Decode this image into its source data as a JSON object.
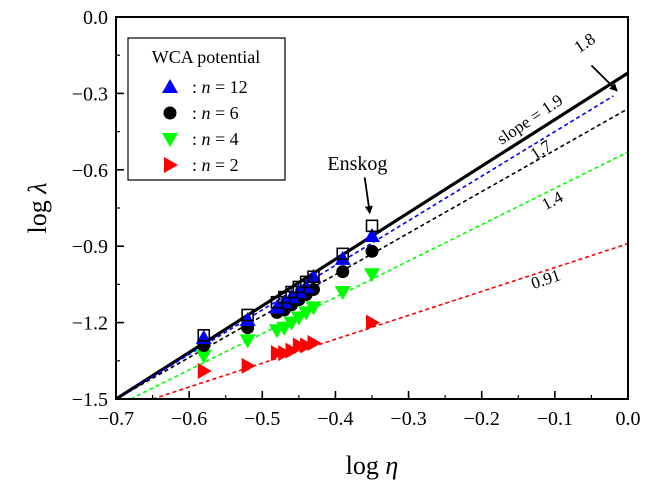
{
  "chart_data": {
    "type": "scatter",
    "title": "",
    "xlabel": "log η",
    "ylabel": "log λ",
    "xlim": [
      -0.7,
      0.0
    ],
    "ylim": [
      -1.5,
      0.0
    ],
    "grid": false,
    "legend_position": "top-left",
    "x_ticks": [
      -0.7,
      -0.6,
      -0.5,
      -0.4,
      -0.3,
      -0.2,
      -0.1,
      0.0
    ],
    "x_tick_labels": [
      "−0.7",
      "−0.6",
      "−0.5",
      "−0.4",
      "−0.3",
      "−0.2",
      "−0.1",
      "0.0"
    ],
    "y_ticks": [
      -1.5,
      -1.2,
      -0.9,
      -0.6,
      -0.3,
      0.0
    ],
    "y_tick_labels": [
      "−1.5",
      "−1.2",
      "−0.9",
      "−0.6",
      "−0.3",
      "0.0"
    ],
    "legend": {
      "title": "WCA potential",
      "entries": [
        {
          "prefix": ": ",
          "var": "n",
          "suffix": " = 12",
          "series": "n12"
        },
        {
          "prefix": ": ",
          "var": "n",
          "suffix": " = 6",
          "series": "n6"
        },
        {
          "prefix": ": ",
          "var": "n",
          "suffix": " = 4",
          "series": "n4"
        },
        {
          "prefix": ": ",
          "var": "n",
          "suffix": " = 2",
          "series": "n2"
        }
      ]
    },
    "series": [
      {
        "id": "enskog",
        "name": "Enskog",
        "marker": "open-square",
        "color": "#000000",
        "x": [
          -0.58,
          -0.52,
          -0.48,
          -0.47,
          -0.46,
          -0.45,
          -0.44,
          -0.43,
          -0.39,
          -0.35
        ],
        "y": [
          -1.25,
          -1.17,
          -1.12,
          -1.1,
          -1.08,
          -1.06,
          -1.04,
          -1.02,
          -0.93,
          -0.82
        ]
      },
      {
        "id": "n12",
        "name": "n = 12",
        "marker": "triangle-up",
        "color": "#0000ff",
        "x": [
          -0.58,
          -0.52,
          -0.48,
          -0.47,
          -0.46,
          -0.45,
          -0.44,
          -0.43,
          -0.39,
          -0.35
        ],
        "y": [
          -1.26,
          -1.19,
          -1.14,
          -1.12,
          -1.1,
          -1.08,
          -1.06,
          -1.02,
          -0.95,
          -0.86
        ]
      },
      {
        "id": "n6",
        "name": "n = 6",
        "marker": "circle",
        "color": "#000000",
        "x": [
          -0.58,
          -0.52,
          -0.48,
          -0.47,
          -0.46,
          -0.45,
          -0.44,
          -0.43,
          -0.39,
          -0.35
        ],
        "y": [
          -1.29,
          -1.22,
          -1.16,
          -1.15,
          -1.13,
          -1.11,
          -1.09,
          -1.07,
          -1.0,
          -0.92
        ]
      },
      {
        "id": "n4",
        "name": "n = 4",
        "marker": "triangle-down",
        "color": "#00ff00",
        "x": [
          -0.58,
          -0.52,
          -0.48,
          -0.47,
          -0.46,
          -0.45,
          -0.44,
          -0.43,
          -0.39,
          -0.35
        ],
        "y": [
          -1.33,
          -1.27,
          -1.23,
          -1.22,
          -1.2,
          -1.18,
          -1.16,
          -1.14,
          -1.08,
          -1.01
        ]
      },
      {
        "id": "n2",
        "name": "n = 2",
        "marker": "triangle-right",
        "color": "#ff0000",
        "x": [
          -0.58,
          -0.52,
          -0.48,
          -0.47,
          -0.46,
          -0.45,
          -0.44,
          -0.43,
          -0.35
        ],
        "y": [
          -1.39,
          -1.37,
          -1.32,
          -1.32,
          -1.31,
          -1.29,
          -1.29,
          -1.28,
          -1.2
        ]
      }
    ],
    "fit_lines": [
      {
        "id": "fit-enskog",
        "series": "enskog",
        "slope": 1.9,
        "x": [
          -0.7,
          0.0
        ],
        "y": [
          -1.5,
          -0.22
        ],
        "color": "#000000",
        "style": "solid"
      },
      {
        "id": "fit-n12",
        "series": "n12",
        "slope": 1.8,
        "x": [
          -0.7,
          -0.02
        ],
        "y": [
          -1.5,
          -0.31
        ],
        "color": "#0000ff",
        "style": "dashed"
      },
      {
        "id": "fit-n6",
        "series": "n6",
        "slope": 1.7,
        "x": [
          -0.7,
          0.0
        ],
        "y": [
          -1.5,
          -0.36
        ],
        "color": "#000000",
        "style": "dashed"
      },
      {
        "id": "fit-n4",
        "series": "n4",
        "slope": 1.4,
        "x": [
          -0.68,
          0.0
        ],
        "y": [
          -1.5,
          -0.53
        ],
        "color": "#00ff00",
        "style": "dashed"
      },
      {
        "id": "fit-n2",
        "series": "n2",
        "slope": 0.91,
        "x": [
          -0.65,
          0.0
        ],
        "y": [
          -1.5,
          -0.89
        ],
        "color": "#ff0000",
        "style": "dashed"
      }
    ],
    "annotations": [
      {
        "id": "slope-main",
        "text": "slope = 1.9",
        "x": -0.13,
        "y": -0.42,
        "angle": -34,
        "fs": 17
      },
      {
        "id": "slope-12",
        "text": "1.8",
        "x": -0.055,
        "y": -0.12,
        "angle": -34,
        "fs": 17
      },
      {
        "id": "slope-6",
        "text": "1.7",
        "x": -0.115,
        "y": -0.54,
        "angle": -33,
        "fs": 17
      },
      {
        "id": "slope-4",
        "text": "1.4",
        "x": -0.1,
        "y": -0.74,
        "angle": -28,
        "fs": 17
      },
      {
        "id": "slope-2",
        "text": "0.91",
        "x": -0.11,
        "y": -1.05,
        "angle": -19,
        "fs": 17
      },
      {
        "id": "enskog-label",
        "text": "Enskog",
        "x": -0.37,
        "y": -0.6,
        "angle": 0,
        "fs": 20
      }
    ],
    "arrows": [
      {
        "id": "enskog-arrow",
        "from": [
          -0.36,
          -0.63
        ],
        "to": [
          -0.353,
          -0.77
        ]
      },
      {
        "id": "slope-12-arrow",
        "from": [
          -0.05,
          -0.19
        ],
        "to": [
          -0.015,
          -0.29
        ]
      }
    ]
  }
}
